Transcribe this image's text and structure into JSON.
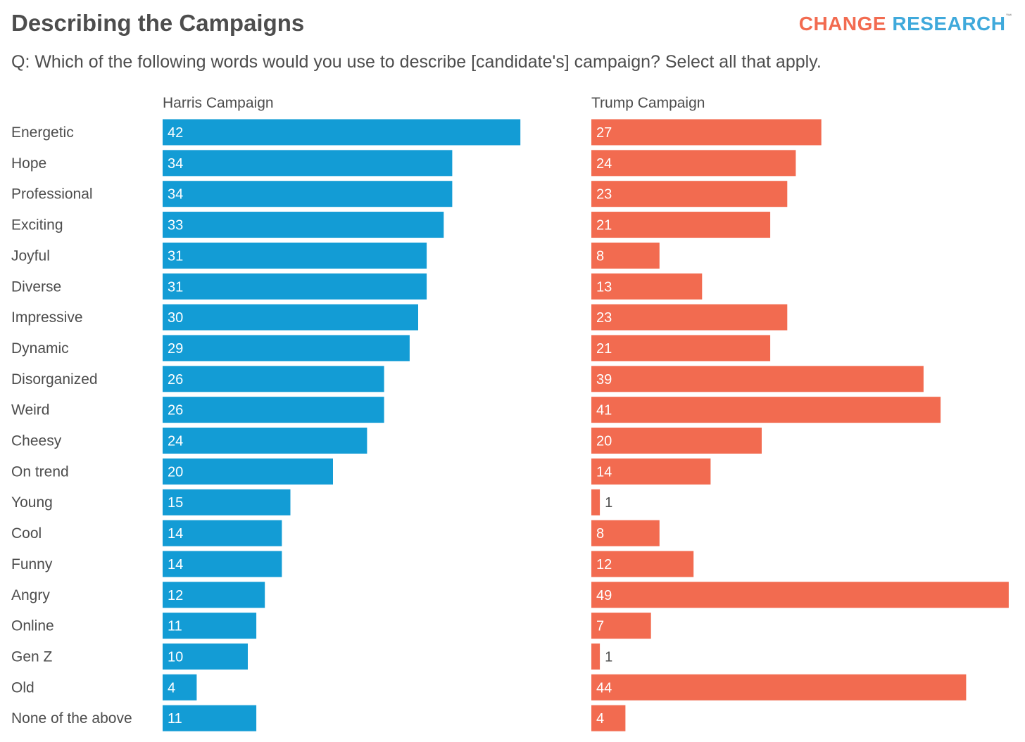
{
  "title": "Describing the Campaigns",
  "subtitle": "Q: Which of the following words would you use to describe [candidate's] campaign? Select all that apply.",
  "logo": {
    "word1": "CHANGE",
    "word2": "RESEARCH",
    "tm": "™"
  },
  "colors": {
    "harris": "#139cd5",
    "trump": "#f26b50",
    "text": "#4d4d4d",
    "label_inside": "#ffffff"
  },
  "chart_data": {
    "type": "bar",
    "orientation": "horizontal",
    "categories": [
      "Energetic",
      "Hope",
      "Professional",
      "Exciting",
      "Joyful",
      "Diverse",
      "Impressive",
      "Dynamic",
      "Disorganized",
      "Weird",
      "Cheesy",
      "On trend",
      "Young",
      "Cool",
      "Funny",
      "Angry",
      "Online",
      "Gen Z",
      "Old",
      "None of the above"
    ],
    "series": [
      {
        "name": "Harris Campaign",
        "values": [
          42,
          34,
          34,
          33,
          31,
          31,
          30,
          29,
          26,
          26,
          24,
          20,
          15,
          14,
          14,
          12,
          11,
          10,
          4,
          11
        ]
      },
      {
        "name": "Trump Campaign",
        "values": [
          27,
          24,
          23,
          21,
          8,
          13,
          23,
          21,
          39,
          41,
          20,
          14,
          1,
          8,
          12,
          49,
          7,
          1,
          44,
          4
        ]
      }
    ],
    "xlim": [
      0,
      49
    ],
    "grid": false,
    "legend": "none",
    "title": "Describing the Campaigns"
  }
}
